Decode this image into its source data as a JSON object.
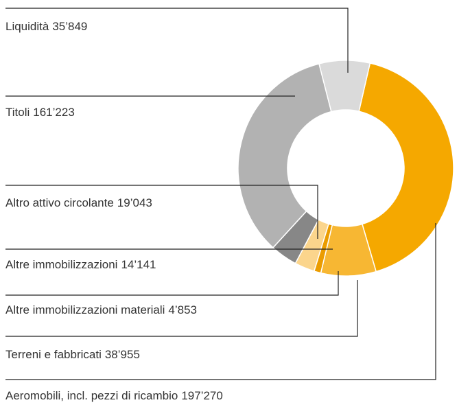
{
  "chart_data": {
    "type": "donut",
    "categories": [
      "Aeromobili, incl. pezzi di ricambio",
      "Terreni e fabbricati",
      "Altre immobilizzazioni materiali",
      "Altre immobilizzazioni",
      "Altro attivo circolante",
      "Titoli",
      "Liquidità"
    ],
    "values": [
      197270,
      38955,
      4853,
      14141,
      19043,
      161223,
      35849
    ],
    "value_labels": [
      "197’270",
      "38’955",
      "4’853",
      "14’141",
      "19’043",
      "161’223",
      "35’849"
    ],
    "colors": [
      "#f5a800",
      "#f7b733",
      "#eb9c00",
      "#fbd58c",
      "#878787",
      "#b2b2b2",
      "#dadada"
    ]
  }
}
